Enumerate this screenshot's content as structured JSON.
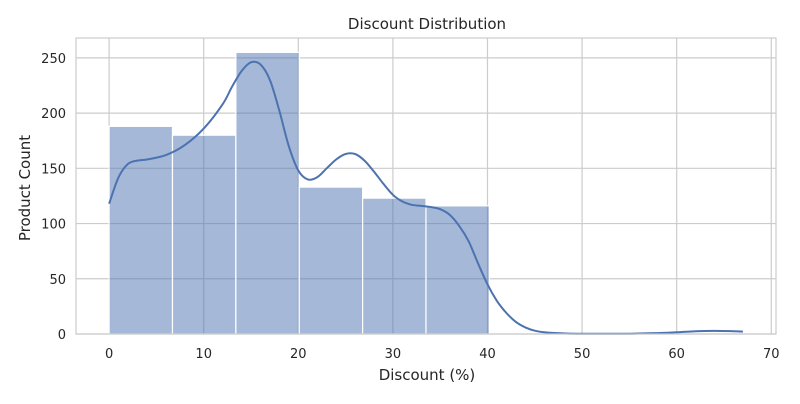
{
  "chart_data": {
    "type": "histogram",
    "title": "Discount Distribution",
    "xlabel": "Discount (%)",
    "ylabel": "Product Count",
    "xlim": [
      -3.5,
      70.5
    ],
    "ylim": [
      0,
      268
    ],
    "xticks": [
      0,
      10,
      20,
      30,
      40,
      50,
      60,
      70
    ],
    "yticks": [
      0,
      50,
      100,
      150,
      200,
      250
    ],
    "grid": true,
    "bins": [
      {
        "x0": 0.0,
        "x1": 6.7,
        "count": 188
      },
      {
        "x0": 6.7,
        "x1": 13.4,
        "count": 180
      },
      {
        "x0": 13.4,
        "x1": 20.1,
        "count": 255
      },
      {
        "x0": 20.1,
        "x1": 26.8,
        "count": 133
      },
      {
        "x0": 26.8,
        "x1": 33.5,
        "count": 123
      },
      {
        "x0": 33.5,
        "x1": 40.2,
        "count": 116
      }
    ],
    "kde": {
      "x": [
        0,
        1,
        2,
        3,
        4,
        6,
        8,
        10,
        12,
        13,
        14,
        15,
        16,
        17,
        18,
        19,
        20,
        21,
        22,
        23,
        24,
        25,
        26,
        27,
        28,
        29,
        30,
        31,
        32,
        33,
        34,
        35,
        36,
        37,
        38,
        39,
        40,
        41,
        42,
        43,
        44,
        45,
        46,
        48,
        50,
        52,
        55,
        58,
        60,
        62,
        64,
        66,
        67
      ],
      "y": [
        118,
        142,
        154,
        157,
        158,
        162,
        171,
        186,
        208,
        224,
        238,
        246,
        244,
        230,
        202,
        170,
        148,
        140,
        142,
        150,
        158,
        163,
        163,
        157,
        147,
        136,
        126,
        120,
        117,
        116,
        115,
        113,
        108,
        98,
        84,
        64,
        45,
        30,
        19,
        11,
        6,
        3,
        1.5,
        0.5,
        0.2,
        0.2,
        0.3,
        0.8,
        1.5,
        2.5,
        2.8,
        2.5,
        2.2
      ]
    },
    "colors": {
      "bar_fill": "#4c72b0",
      "bar_opacity": 0.5,
      "kde_line": "#4c72b0",
      "grid": "#cccccc",
      "text": "#262626"
    }
  }
}
